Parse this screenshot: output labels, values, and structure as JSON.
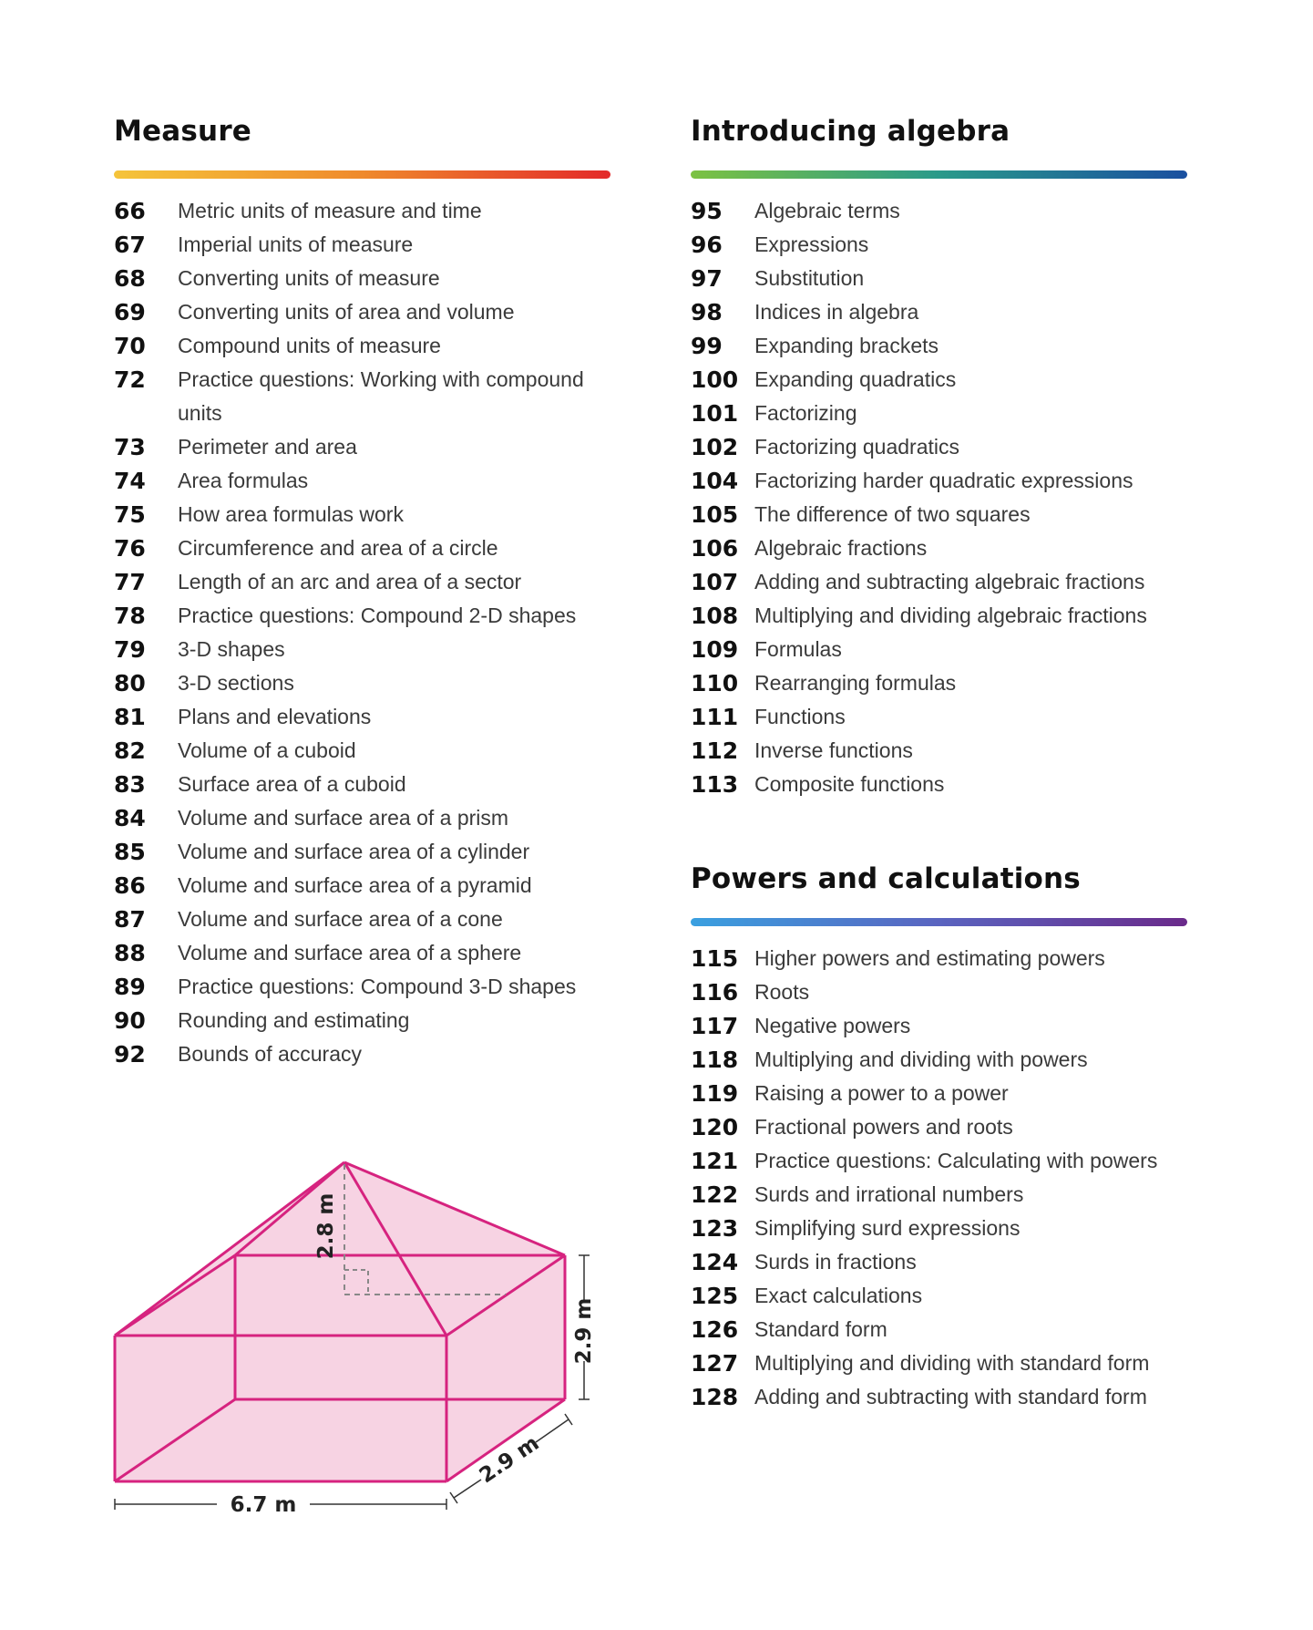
{
  "sections": {
    "measure": {
      "title": "Measure",
      "bar_colors": [
        "#f5c43a",
        "#ef8a2c",
        "#e32a2a"
      ],
      "entries": [
        {
          "page": "66",
          "title": "Metric units of measure and time"
        },
        {
          "page": "67",
          "title": "Imperial units of measure"
        },
        {
          "page": "68",
          "title": "Converting units of measure"
        },
        {
          "page": "69",
          "title": "Converting units of area and volume"
        },
        {
          "page": "70",
          "title": "Compound units of measure"
        },
        {
          "page": "72",
          "title": "Practice questions:  Working with compound units"
        },
        {
          "page": "73",
          "title": "Perimeter and area"
        },
        {
          "page": "74",
          "title": "Area formulas"
        },
        {
          "page": "75",
          "title": "How area formulas work"
        },
        {
          "page": "76",
          "title": "Circumference and area of a circle"
        },
        {
          "page": "77",
          "title": "Length of an arc and area of a sector"
        },
        {
          "page": "78",
          "title": "Practice questions:  Compound 2-D shapes"
        },
        {
          "page": "79",
          "title": "3-D shapes"
        },
        {
          "page": "80",
          "title": "3-D sections"
        },
        {
          "page": "81",
          "title": "Plans and elevations"
        },
        {
          "page": "82",
          "title": "Volume of a cuboid"
        },
        {
          "page": "83",
          "title": "Surface area of a cuboid"
        },
        {
          "page": "84",
          "title": "Volume and surface area of a prism"
        },
        {
          "page": "85",
          "title": "Volume and surface area of a cylinder"
        },
        {
          "page": "86",
          "title": "Volume and surface area of a pyramid"
        },
        {
          "page": "87",
          "title": "Volume and surface area of a cone"
        },
        {
          "page": "88",
          "title": "Volume and surface area of a sphere"
        },
        {
          "page": "89",
          "title": "Practice questions:  Compound 3-D shapes"
        },
        {
          "page": "90",
          "title": "Rounding and estimating"
        },
        {
          "page": "92",
          "title": "Bounds of accuracy"
        }
      ]
    },
    "algebra": {
      "title": "Introducing algebra",
      "bar_colors": [
        "#7cc242",
        "#2a9a8a",
        "#1a4fa0"
      ],
      "entries": [
        {
          "page": "95",
          "title": "Algebraic terms"
        },
        {
          "page": "96",
          "title": "Expressions"
        },
        {
          "page": "97",
          "title": "Substitution"
        },
        {
          "page": "98",
          "title": "Indices in algebra"
        },
        {
          "page": "99",
          "title": "Expanding brackets"
        },
        {
          "page": "100",
          "title": "Expanding quadratics"
        },
        {
          "page": "101",
          "title": "Factorizing"
        },
        {
          "page": "102",
          "title": "Factorizing quadratics"
        },
        {
          "page": "104",
          "title": "Factorizing harder quadratic expressions"
        },
        {
          "page": "105",
          "title": "The difference of two squares"
        },
        {
          "page": "106",
          "title": "Algebraic fractions"
        },
        {
          "page": "107",
          "title": "Adding and subtracting algebraic fractions"
        },
        {
          "page": "108",
          "title": "Multiplying and dividing algebraic fractions"
        },
        {
          "page": "109",
          "title": "Formulas"
        },
        {
          "page": "110",
          "title": "Rearranging formulas"
        },
        {
          "page": "111",
          "title": "Functions"
        },
        {
          "page": "112",
          "title": "Inverse functions"
        },
        {
          "page": "113",
          "title": "Composite functions"
        }
      ]
    },
    "powers": {
      "title": "Powers and calculations",
      "bar_colors": [
        "#3aa0e0",
        "#5a64c0",
        "#6a2a8a"
      ],
      "entries": [
        {
          "page": "115",
          "title": "Higher powers and estimating powers"
        },
        {
          "page": "116",
          "title": "Roots"
        },
        {
          "page": "117",
          "title": "Negative powers"
        },
        {
          "page": "118",
          "title": "Multiplying and dividing with powers"
        },
        {
          "page": "119",
          "title": "Raising a power to a power"
        },
        {
          "page": "120",
          "title": "Fractional powers and roots"
        },
        {
          "page": "121",
          "title": "Practice questions:  Calculating with powers"
        },
        {
          "page": "122",
          "title": "Surds and irrational numbers"
        },
        {
          "page": "123",
          "title": "Simplifying surd expressions"
        },
        {
          "page": "124",
          "title": "Surds in fractions"
        },
        {
          "page": "125",
          "title": "Exact calculations"
        },
        {
          "page": "126",
          "title": "Standard form"
        },
        {
          "page": "127",
          "title": "Multiplying and dividing with standard form"
        },
        {
          "page": "128",
          "title": "Adding and subtracting with standard form"
        }
      ]
    }
  },
  "diagram": {
    "shape_color": "#d6237f",
    "fill_color": "#f7d3e3",
    "labels": {
      "height": "2.8 m",
      "side": "2.9 m",
      "depth": "2.9 m",
      "width": "6.7 m"
    }
  }
}
